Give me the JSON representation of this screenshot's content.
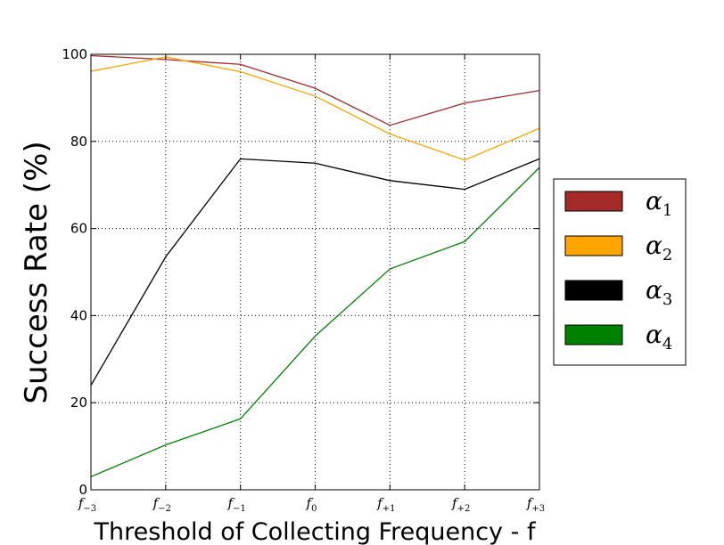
{
  "chart_data": {
    "type": "line",
    "xlabel": "Threshold of Collecting Frequency - f",
    "ylabel": "Success Rate (%)",
    "ylim": [
      0,
      100
    ],
    "yticks": [
      0,
      20,
      40,
      60,
      80,
      100
    ],
    "grid": true,
    "legend_position": "right",
    "categories": [
      {
        "base": "f",
        "sub": "−3"
      },
      {
        "base": "f",
        "sub": "−2"
      },
      {
        "base": "f",
        "sub": "−1"
      },
      {
        "base": "f",
        "sub": "0"
      },
      {
        "base": "f",
        "sub": "+1"
      },
      {
        "base": "f",
        "sub": "+2"
      },
      {
        "base": "f",
        "sub": "+3"
      }
    ],
    "series": [
      {
        "name": "α1",
        "label_base": "α",
        "label_sub": "1",
        "color": "#a52a2a",
        "values": [
          99.7,
          98.8,
          97.7,
          92.2,
          83.7,
          88.8,
          91.7
        ]
      },
      {
        "name": "α2",
        "label_base": "α",
        "label_sub": "2",
        "color": "#ffa500",
        "values": [
          96.1,
          99.4,
          96.0,
          90.4,
          81.7,
          75.7,
          83.0
        ]
      },
      {
        "name": "α3",
        "label_base": "α",
        "label_sub": "3",
        "color": "#000000",
        "values": [
          24.0,
          53.5,
          76.0,
          75.0,
          71.0,
          69.0,
          76.0
        ]
      },
      {
        "name": "α4",
        "label_base": "α",
        "label_sub": "4",
        "color": "#008000",
        "values": [
          3.0,
          10.3,
          16.3,
          35.3,
          50.7,
          57.0,
          74.0
        ]
      }
    ]
  }
}
